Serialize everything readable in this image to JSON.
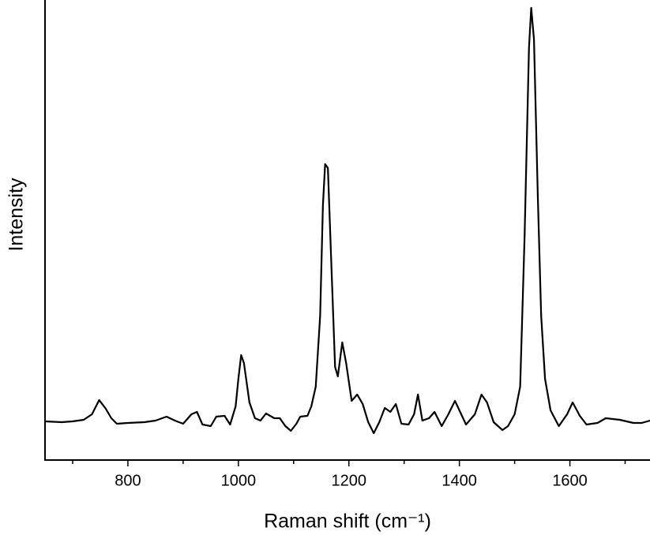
{
  "chart_data": {
    "type": "line",
    "xlabel": "Raman shift (cm⁻¹)",
    "ylabel": "Intensity",
    "x": [
      650,
      680,
      700,
      720,
      735,
      748,
      760,
      770,
      780,
      800,
      830,
      850,
      870,
      885,
      900,
      915,
      925,
      935,
      950,
      960,
      975,
      985,
      995,
      1000,
      1005,
      1010,
      1020,
      1030,
      1040,
      1050,
      1065,
      1075,
      1085,
      1095,
      1105,
      1112,
      1125,
      1132,
      1140,
      1148,
      1153,
      1157,
      1162,
      1168,
      1175,
      1180,
      1188,
      1195,
      1205,
      1215,
      1225,
      1235,
      1245,
      1255,
      1265,
      1275,
      1285,
      1295,
      1308,
      1318,
      1325,
      1333,
      1345,
      1355,
      1368,
      1380,
      1392,
      1400,
      1412,
      1428,
      1440,
      1450,
      1462,
      1478,
      1488,
      1500,
      1510,
      1518,
      1526,
      1530,
      1535,
      1542,
      1548,
      1555,
      1565,
      1580,
      1595,
      1605,
      1618,
      1630,
      1650,
      1665,
      1690,
      1715,
      1730,
      1745
    ],
    "values": [
      49,
      48,
      49,
      51,
      58,
      76,
      65,
      53,
      46,
      47,
      48,
      50,
      55,
      50,
      46,
      58,
      61,
      45,
      43,
      55,
      56,
      45,
      68,
      103,
      133,
      123,
      73,
      53,
      50,
      59,
      53,
      53,
      43,
      37,
      46,
      55,
      56,
      68,
      93,
      183,
      323,
      375,
      370,
      253,
      118,
      106,
      149,
      123,
      75,
      83,
      71,
      48,
      34,
      48,
      66,
      61,
      71,
      46,
      45,
      58,
      83,
      50,
      53,
      61,
      43,
      58,
      75,
      63,
      45,
      58,
      83,
      73,
      48,
      38,
      43,
      58,
      93,
      283,
      523,
      573,
      533,
      333,
      183,
      103,
      63,
      43,
      58,
      73,
      56,
      45,
      47,
      53,
      51,
      47,
      47,
      50
    ],
    "color": "#000000",
    "xlim": [
      650,
      1745
    ],
    "ylim": [
      0,
      583
    ],
    "xticks": [
      800,
      1000,
      1200,
      1400,
      1600
    ],
    "minor_xticks": [
      700,
      900,
      1100,
      1300,
      1500,
      1700
    ],
    "grid": false
  }
}
